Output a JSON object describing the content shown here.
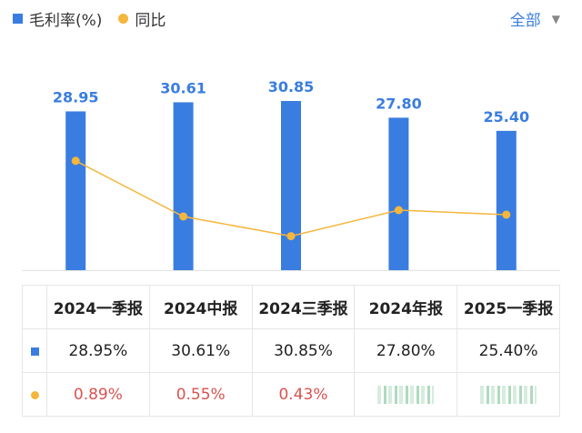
{
  "legend": {
    "bar_label": "毛利率(%)",
    "line_label": "同比"
  },
  "filter": {
    "label": "全部"
  },
  "colors": {
    "bar": "#3a7de0",
    "line": "#f4b63c",
    "negative_text": "#d9534f",
    "positive_text": "#2faa66"
  },
  "chart_data": {
    "type": "bar",
    "categories": [
      "2024一季报",
      "2024中报",
      "2024三季报",
      "2024年报",
      "2025一季报"
    ],
    "series": [
      {
        "name": "毛利率(%)",
        "kind": "bar",
        "values": [
          28.95,
          30.61,
          30.85,
          27.8,
          25.4
        ],
        "labels": [
          "28.95",
          "30.61",
          "30.85",
          "27.80",
          "25.40"
        ]
      },
      {
        "name": "同比",
        "kind": "line",
        "values": [
          0.89,
          0.55,
          0.43,
          null,
          null
        ]
      }
    ],
    "ylim": [
      0,
      34
    ],
    "grid": false,
    "legend_position": "top-left"
  },
  "table": {
    "headers": [
      "2024一季报",
      "2024中报",
      "2024三季报",
      "2024年报",
      "2025一季报"
    ],
    "row_margin": [
      "28.95%",
      "30.61%",
      "30.85%",
      "27.80%",
      "25.40%"
    ],
    "row_yoy": [
      "0.89%",
      "0.55%",
      "0.43%",
      "",
      ""
    ]
  }
}
